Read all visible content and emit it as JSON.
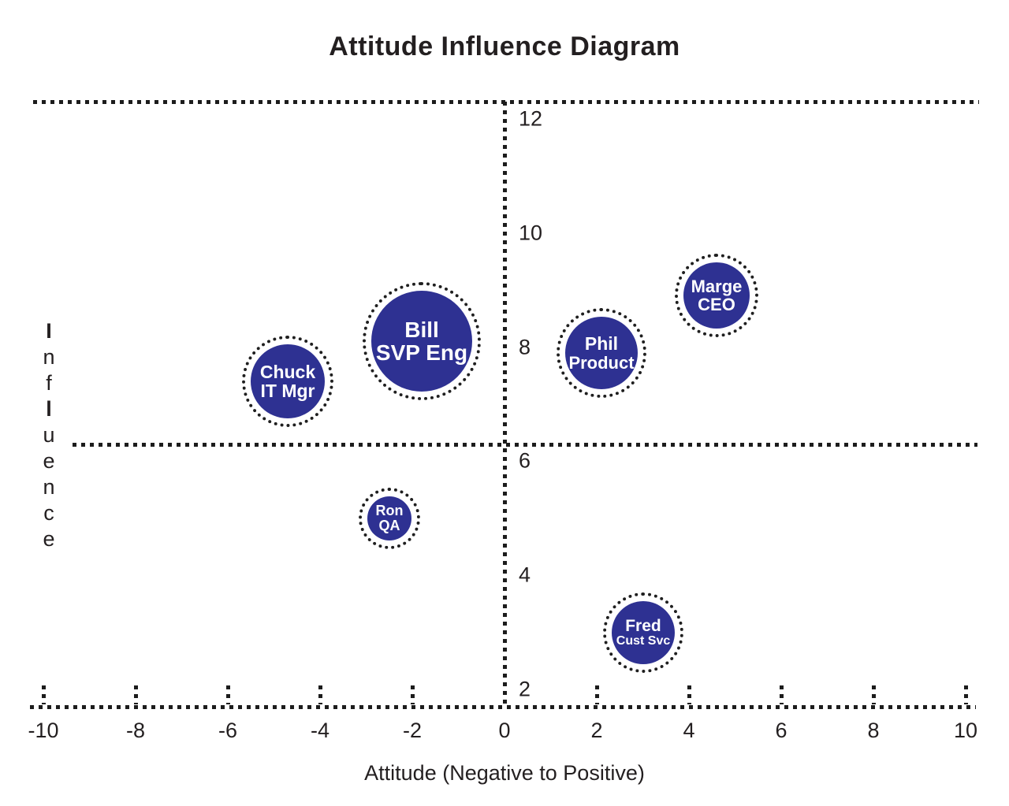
{
  "chart_data": {
    "type": "scatter",
    "title": "Attitude Influence Diagram",
    "xlabel": "Attitude (Negative to Positive)",
    "ylabel": "Influence",
    "xlim": [
      -10,
      10
    ],
    "ylim": [
      2,
      12
    ],
    "x_ticks": [
      -10,
      -8,
      -6,
      -4,
      -2,
      0,
      2,
      4,
      6,
      8,
      10
    ],
    "y_ticks": [
      2,
      4,
      6,
      8,
      10,
      12
    ],
    "grid": false,
    "legend": false,
    "quadrant_lines": {
      "vertical_at_x": 0,
      "horizontal_at_y": 6.3,
      "top_frame_y": 12.3,
      "bottom_axis_y": 1.7
    },
    "bubble_fill": "#2e3192",
    "bubble_text_color": "#ffffff",
    "dot_color": "#1c1c1c",
    "points": [
      {
        "name": "Bill",
        "role": "SVP Eng",
        "x": -1.8,
        "y": 8.1,
        "radius_px": 64
      },
      {
        "name": "Chuck",
        "role": "IT Mgr",
        "x": -4.7,
        "y": 7.4,
        "radius_px": 47
      },
      {
        "name": "Marge",
        "role": "CEO",
        "x": 4.6,
        "y": 8.9,
        "radius_px": 42
      },
      {
        "name": "Phil",
        "role": "Product",
        "x": 2.1,
        "y": 7.9,
        "radius_px": 46
      },
      {
        "name": "Ron",
        "role": "QA",
        "x": -2.5,
        "y": 5.0,
        "radius_px": 28
      },
      {
        "name": "Fred",
        "role": "Cust Svc",
        "x": 3.0,
        "y": 3.0,
        "radius_px": 40
      }
    ]
  }
}
